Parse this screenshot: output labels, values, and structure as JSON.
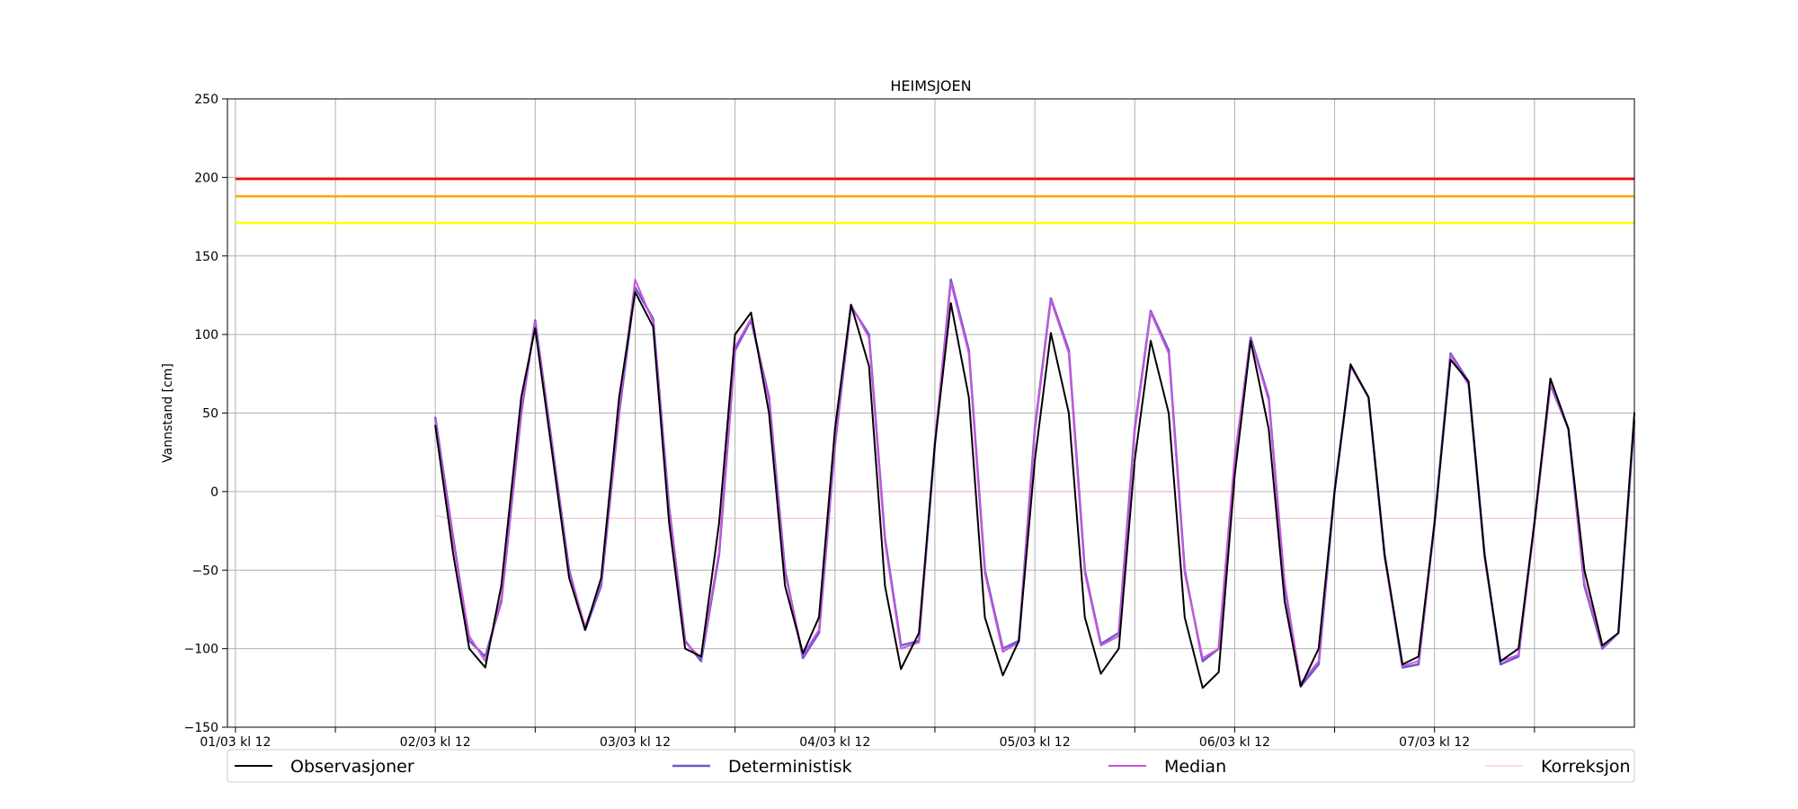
{
  "chart_data": {
    "type": "line",
    "title": "HEIMSJOEN",
    "xlabel": "",
    "ylabel": "Vannstand [cm]",
    "ylim": [
      -150,
      250
    ],
    "yticks": [
      -150,
      -100,
      -50,
      0,
      50,
      100,
      150,
      200,
      250
    ],
    "xlim": [
      -0.04,
      7.0
    ],
    "x_unit": "days since 01/03 kl 12",
    "xtick_labels": [
      "01/03 kl 12",
      "02/03 kl 12",
      "03/03 kl 12",
      "04/03 kl 12",
      "05/03 kl 12",
      "06/03 kl 12",
      "07/03 kl 12"
    ],
    "xtick_positions": [
      0,
      1,
      2,
      3,
      4,
      5,
      6
    ],
    "minor_xtick_positions": [
      0.5,
      1.5,
      2.5,
      3.5,
      4.5,
      5.5,
      6.5
    ],
    "grid": true,
    "legend_position": "bottom",
    "thresholds": [
      {
        "value": 199,
        "color": "#ff0000"
      },
      {
        "value": 188,
        "color": "#ffa500"
      },
      {
        "value": 171,
        "color": "#ffff00"
      }
    ],
    "series": [
      {
        "name": "Observasjoner",
        "color": "#000000",
        "width": 2,
        "x": [
          1.0,
          1.09,
          1.17,
          1.25,
          1.33,
          1.43,
          1.5,
          1.67,
          1.75,
          1.83,
          1.92,
          2.0,
          2.09,
          2.17,
          2.25,
          2.33,
          2.42,
          2.5,
          2.58,
          2.67,
          2.75,
          2.84,
          2.92,
          3.0,
          3.08,
          3.17,
          3.25,
          3.33,
          3.42,
          3.5,
          3.58,
          3.67,
          3.75,
          3.84,
          3.92,
          4.0,
          4.08,
          4.17,
          4.25,
          4.33,
          4.42,
          4.5,
          4.58,
          4.67,
          4.75,
          4.84,
          4.92,
          5.0,
          5.08,
          5.17,
          5.25,
          5.33,
          5.42,
          5.5,
          5.58,
          5.67,
          5.75,
          5.84,
          5.92,
          6.0,
          6.08,
          6.17,
          6.25,
          6.33,
          6.42,
          6.5,
          6.58,
          6.67,
          6.75,
          6.84,
          6.92,
          7.0
        ],
        "values": [
          42,
          -40,
          -100,
          -112,
          -60,
          60,
          104,
          -55,
          -88,
          -55,
          60,
          127,
          105,
          -20,
          -100,
          -105,
          -20,
          100,
          114,
          50,
          -60,
          -103,
          -80,
          40,
          119,
          80,
          -60,
          -113,
          -90,
          30,
          120,
          60,
          -80,
          -117,
          -95,
          20,
          101,
          50,
          -80,
          -116,
          -100,
          20,
          96,
          50,
          -80,
          -125,
          -115,
          10,
          96,
          40,
          -70,
          -124,
          -100,
          0,
          81,
          60,
          -40,
          -110,
          -105,
          -20,
          84,
          70,
          -40,
          -108,
          -100,
          -20,
          72,
          40,
          -50,
          -98,
          -90,
          50
        ]
      },
      {
        "name": "Deterministisk",
        "color": "#6a5acd",
        "width": 2.5,
        "x": [
          1.0,
          1.09,
          1.17,
          1.25,
          1.33,
          1.43,
          1.5,
          1.67,
          1.75,
          1.83,
          1.92,
          2.0,
          2.09,
          2.17,
          2.25,
          2.33,
          2.42,
          2.5,
          2.58,
          2.67,
          2.75,
          2.84,
          2.92,
          3.0,
          3.08,
          3.17,
          3.25,
          3.33,
          3.42,
          3.5,
          3.58,
          3.67,
          3.75,
          3.84,
          3.92,
          4.0,
          4.08,
          4.17,
          4.25,
          4.33,
          4.42,
          4.5,
          4.58,
          4.67,
          4.75,
          4.84,
          4.92,
          5.0,
          5.08,
          5.17,
          5.25,
          5.33,
          5.42,
          5.5,
          5.58,
          5.67,
          5.75,
          5.84,
          5.92,
          6.0,
          6.08,
          6.17,
          6.25,
          6.33,
          6.42,
          6.5,
          6.58,
          6.67,
          6.75,
          6.84,
          6.92,
          7.0
        ],
        "values": [
          47,
          -30,
          -95,
          -105,
          -70,
          50,
          109,
          -50,
          -88,
          -60,
          50,
          130,
          110,
          -10,
          -95,
          -108,
          -40,
          90,
          109,
          60,
          -50,
          -106,
          -90,
          30,
          118,
          100,
          -30,
          -98,
          -95,
          30,
          135,
          90,
          -50,
          -100,
          -95,
          40,
          123,
          90,
          -50,
          -97,
          -90,
          40,
          115,
          90,
          -50,
          -108,
          -100,
          20,
          98,
          60,
          -60,
          -124,
          -110,
          0,
          80,
          60,
          -40,
          -112,
          -110,
          -20,
          88,
          70,
          -40,
          -110,
          -105,
          -20,
          68,
          40,
          -60,
          -100,
          -90,
          45
        ]
      },
      {
        "name": "Median",
        "color": "#cc55dd",
        "width": 2,
        "x": [
          1.0,
          1.09,
          1.17,
          1.25,
          1.33,
          1.43,
          1.5,
          1.67,
          1.75,
          1.83,
          1.92,
          2.0,
          2.09,
          2.17,
          2.25,
          2.33,
          2.42,
          2.5,
          2.58,
          2.67,
          2.75,
          2.84,
          2.92,
          3.0,
          3.08,
          3.17,
          3.25,
          3.33,
          3.42,
          3.5,
          3.58,
          3.67,
          3.75,
          3.84,
          3.92,
          4.0,
          4.08,
          4.17,
          4.25,
          4.33,
          4.42,
          4.5,
          4.58,
          4.67,
          4.75,
          4.84,
          4.92,
          5.0,
          5.08,
          5.17,
          5.25,
          5.33,
          5.42,
          5.5,
          5.58,
          5.67,
          5.75,
          5.84,
          5.92,
          6.0,
          6.08,
          6.17,
          6.25,
          6.33,
          6.42,
          6.5,
          6.58,
          6.67,
          6.75,
          6.84,
          6.92,
          7.0
        ],
        "values": [
          45,
          -32,
          -92,
          -108,
          -68,
          52,
          108,
          -52,
          -86,
          -58,
          52,
          135,
          108,
          -12,
          -96,
          -106,
          -38,
          92,
          110,
          58,
          -52,
          -104,
          -88,
          32,
          119,
          98,
          -32,
          -100,
          -96,
          32,
          133,
          88,
          -52,
          -102,
          -96,
          38,
          122,
          88,
          -52,
          -98,
          -92,
          38,
          114,
          88,
          -52,
          -106,
          -100,
          22,
          97,
          58,
          -58,
          -122,
          -108,
          2,
          80,
          60,
          -42,
          -111,
          -108,
          -22,
          87,
          68,
          -42,
          -108,
          -104,
          -22,
          69,
          40,
          -58,
          -99,
          -90,
          46
        ]
      },
      {
        "name": "Korreksjon",
        "color": "#f4b8cc",
        "width": 1,
        "x": [
          1.0,
          1.06,
          3.0,
          3.0,
          5.0,
          5.0,
          7.0
        ],
        "values": [
          -15,
          -17,
          -17,
          0,
          0,
          -17,
          -17
        ]
      }
    ]
  }
}
